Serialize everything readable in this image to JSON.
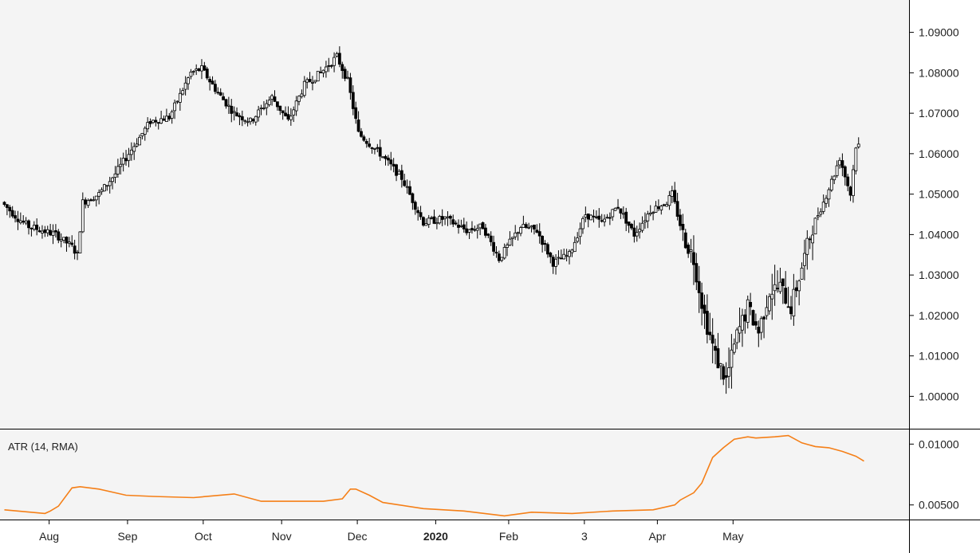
{
  "chart_data": [
    {
      "type": "candlestick",
      "name": "price",
      "ylim": [
        0.992,
        1.098
      ],
      "yticks": [
        "1.00000",
        "1.01000",
        "1.02000",
        "1.03000",
        "1.04000",
        "1.05000",
        "1.06000",
        "1.07000",
        "1.08000",
        "1.09000"
      ],
      "ytick_values": [
        1.0,
        1.01,
        1.02,
        1.03,
        1.04,
        1.05,
        1.06,
        1.07,
        1.08,
        1.09
      ],
      "candle_colors": {
        "up": "#ffffff",
        "down": "#000000",
        "wick": "#000000"
      },
      "knots": [
        [
          0,
          1.048
        ],
        [
          6,
          1.044
        ],
        [
          10,
          1.042
        ],
        [
          15,
          1.041
        ],
        [
          20,
          1.04
        ],
        [
          26,
          1.037
        ],
        [
          28,
          1.035
        ],
        [
          30,
          1.048
        ],
        [
          36,
          1.05
        ],
        [
          42,
          1.055
        ],
        [
          50,
          1.063
        ],
        [
          55,
          1.068
        ],
        [
          62,
          1.069
        ],
        [
          70,
          1.08
        ],
        [
          74,
          1.081
        ],
        [
          80,
          1.075
        ],
        [
          86,
          1.07
        ],
        [
          92,
          1.068
        ],
        [
          100,
          1.074
        ],
        [
          106,
          1.068
        ],
        [
          112,
          1.077
        ],
        [
          118,
          1.08
        ],
        [
          124,
          1.084
        ],
        [
          128,
          1.078
        ],
        [
          132,
          1.065
        ],
        [
          140,
          1.06
        ],
        [
          148,
          1.054
        ],
        [
          156,
          1.043
        ],
        [
          164,
          1.044
        ],
        [
          172,
          1.041
        ],
        [
          178,
          1.042
        ],
        [
          184,
          1.034
        ],
        [
          192,
          1.042
        ],
        [
          198,
          1.041
        ],
        [
          204,
          1.033
        ],
        [
          210,
          1.035
        ],
        [
          216,
          1.045
        ],
        [
          222,
          1.043
        ],
        [
          228,
          1.047
        ],
        [
          234,
          1.04
        ],
        [
          240,
          1.046
        ],
        [
          246,
          1.048
        ],
        [
          248,
          1.05
        ],
        [
          252,
          1.04
        ],
        [
          256,
          1.034
        ],
        [
          260,
          1.02
        ],
        [
          264,
          1.01
        ],
        [
          268,
          1.004
        ],
        [
          272,
          1.015
        ],
        [
          276,
          1.022
        ],
        [
          280,
          1.016
        ],
        [
          284,
          1.026
        ],
        [
          288,
          1.027
        ],
        [
          292,
          1.022
        ],
        [
          296,
          1.032
        ],
        [
          300,
          1.042
        ],
        [
          304,
          1.048
        ],
        [
          308,
          1.055
        ],
        [
          310,
          1.059
        ],
        [
          314,
          1.05
        ],
        [
          316,
          1.062
        ]
      ],
      "visible_knots": [
        [
          0,
          0
        ],
        [
          316,
          1
        ]
      ]
    },
    {
      "type": "line",
      "name": "atr",
      "title": "ATR (14, RMA)",
      "ylim": [
        0.0038,
        0.0112
      ],
      "yticks": [
        "0.00500",
        "0.01000"
      ],
      "ytick_values": [
        0.005,
        0.01
      ],
      "color": "#f57f17",
      "x": [
        0,
        15,
        17,
        20,
        25,
        28,
        35,
        45,
        55,
        70,
        85,
        95,
        110,
        118,
        125,
        128,
        130,
        135,
        140,
        155,
        170,
        185,
        195,
        210,
        225,
        240,
        248,
        250,
        255,
        258,
        262,
        266,
        270,
        275,
        278,
        285,
        290,
        295,
        300,
        305,
        310,
        315,
        318
      ],
      "y": [
        0.0046,
        0.0043,
        0.0045,
        0.0049,
        0.0064,
        0.0065,
        0.0063,
        0.0058,
        0.0057,
        0.0056,
        0.0059,
        0.0053,
        0.0053,
        0.0053,
        0.0055,
        0.0063,
        0.0063,
        0.0058,
        0.0052,
        0.0047,
        0.0045,
        0.0041,
        0.0044,
        0.0043,
        0.0045,
        0.0046,
        0.005,
        0.0054,
        0.006,
        0.0068,
        0.0089,
        0.0097,
        0.0104,
        0.0106,
        0.0105,
        0.0106,
        0.0107,
        0.0101,
        0.0098,
        0.0097,
        0.0094,
        0.009,
        0.0086
      ]
    }
  ],
  "x_axis": {
    "labels": [
      "Aug",
      "Sep",
      "Oct",
      "Nov",
      "Dec",
      "2020",
      "Feb",
      "3",
      "Apr",
      "May"
    ],
    "bold": [
      false,
      false,
      false,
      false,
      false,
      true,
      false,
      false,
      false,
      false
    ],
    "label_at_candle": [
      17,
      46,
      74,
      103,
      131,
      160,
      187,
      215,
      242,
      270
    ]
  },
  "indicator_label": "ATR (14, RMA)",
  "colors": {
    "plot_bg": "#f4f4f4",
    "grid": "none",
    "axis_line": "#000000",
    "atr": "#f57f17"
  }
}
